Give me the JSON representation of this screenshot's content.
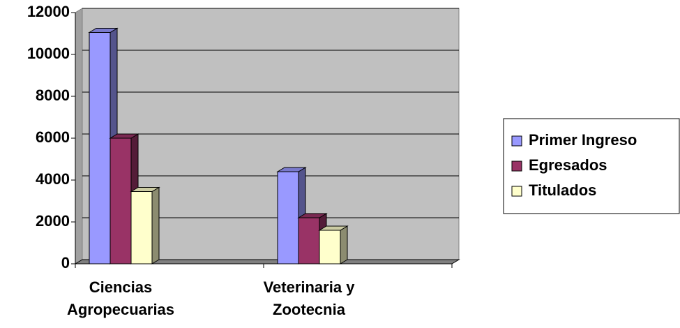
{
  "chart_data": {
    "type": "bar3d",
    "categories": [
      "Ciencias Agropecuarias",
      "Veterinaria y Zootecnia"
    ],
    "series": [
      {
        "name": "Primer Ingreso",
        "color": "#9999ff",
        "values": [
          11050,
          4400
        ]
      },
      {
        "name": "Egresados",
        "color": "#993366",
        "values": [
          6000,
          2200
        ]
      },
      {
        "name": "Titulados",
        "color": "#ffffcc",
        "values": [
          3450,
          1600
        ]
      }
    ],
    "ylim": [
      0,
      12000
    ],
    "yticks": [
      0,
      2000,
      4000,
      6000,
      8000,
      10000,
      12000
    ],
    "grid": true,
    "legend": "right"
  }
}
